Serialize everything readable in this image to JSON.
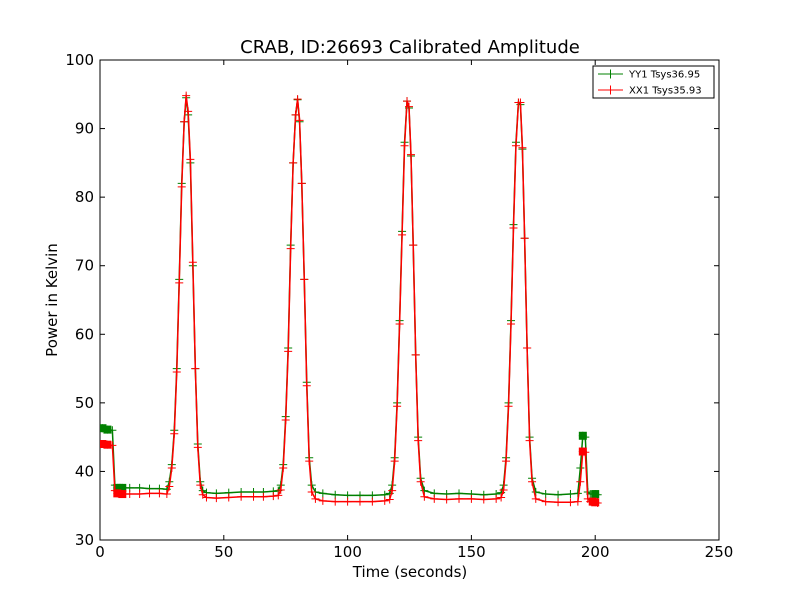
{
  "chart_data": {
    "type": "line",
    "title": "CRAB, ID:26693 Calibrated Amplitude",
    "xlabel": "Time (seconds)",
    "ylabel": "Power in Kelvin",
    "xlim": [
      0,
      250
    ],
    "ylim": [
      30,
      100
    ],
    "xticks": [
      0,
      50,
      100,
      150,
      200,
      250
    ],
    "yticks": [
      30,
      40,
      50,
      60,
      70,
      80,
      90,
      100
    ],
    "grid": false,
    "legend_position": "top-right",
    "series": [
      {
        "name": "YY1 Tsys36.95",
        "color": "#008000",
        "marker": "+",
        "square_marker_points": [
          [
            1,
            46.3
          ],
          [
            3,
            46.1
          ],
          [
            7,
            37.6
          ],
          [
            9,
            37.6
          ],
          [
            195,
            45.2
          ],
          [
            200,
            36.7
          ]
        ],
        "points": [
          [
            1,
            46.3
          ],
          [
            3,
            46.1
          ],
          [
            5,
            46.0
          ],
          [
            6,
            38.0
          ],
          [
            7,
            37.6
          ],
          [
            9,
            37.6
          ],
          [
            12,
            37.6
          ],
          [
            16,
            37.6
          ],
          [
            20,
            37.5
          ],
          [
            24,
            37.5
          ],
          [
            27,
            37.4
          ],
          [
            28,
            38.5
          ],
          [
            29,
            41
          ],
          [
            30,
            46
          ],
          [
            31,
            55
          ],
          [
            32,
            68
          ],
          [
            33,
            82
          ],
          [
            34,
            91
          ],
          [
            34.8,
            94.5
          ],
          [
            35.6,
            92
          ],
          [
            36.5,
            85
          ],
          [
            37.5,
            70
          ],
          [
            38.5,
            55
          ],
          [
            39.5,
            44
          ],
          [
            40.5,
            38.5
          ],
          [
            41.5,
            37.2
          ],
          [
            43,
            36.9
          ],
          [
            47,
            36.8
          ],
          [
            52,
            36.9
          ],
          [
            57,
            37.0
          ],
          [
            62,
            37.0
          ],
          [
            66,
            37.0
          ],
          [
            70,
            37.1
          ],
          [
            72,
            37.2
          ],
          [
            73,
            38
          ],
          [
            74,
            41
          ],
          [
            75,
            48
          ],
          [
            76,
            58
          ],
          [
            77,
            73
          ],
          [
            78,
            85
          ],
          [
            79,
            92
          ],
          [
            79.8,
            94.2
          ],
          [
            80.6,
            91
          ],
          [
            81.5,
            82
          ],
          [
            82.5,
            68
          ],
          [
            83.5,
            53
          ],
          [
            84.5,
            42
          ],
          [
            85.5,
            38
          ],
          [
            87,
            37
          ],
          [
            90,
            36.8
          ],
          [
            95,
            36.6
          ],
          [
            100,
            36.5
          ],
          [
            105,
            36.5
          ],
          [
            110,
            36.5
          ],
          [
            115,
            36.6
          ],
          [
            117,
            36.8
          ],
          [
            118,
            38
          ],
          [
            119,
            42
          ],
          [
            120,
            50
          ],
          [
            121,
            62
          ],
          [
            122,
            75
          ],
          [
            123,
            88
          ],
          [
            124,
            94
          ],
          [
            124.8,
            93
          ],
          [
            125.6,
            86
          ],
          [
            126.5,
            73
          ],
          [
            127.5,
            57
          ],
          [
            128.5,
            45
          ],
          [
            129.5,
            39
          ],
          [
            131,
            37.2
          ],
          [
            135,
            36.8
          ],
          [
            140,
            36.7
          ],
          [
            145,
            36.8
          ],
          [
            150,
            36.7
          ],
          [
            155,
            36.6
          ],
          [
            160,
            36.7
          ],
          [
            162,
            36.9
          ],
          [
            163,
            38
          ],
          [
            164,
            42
          ],
          [
            165,
            50
          ],
          [
            166,
            62
          ],
          [
            167,
            76
          ],
          [
            168,
            88
          ],
          [
            169,
            93.8
          ],
          [
            169.8,
            93.5
          ],
          [
            170.6,
            87
          ],
          [
            171.5,
            74
          ],
          [
            172.5,
            58
          ],
          [
            173.5,
            45
          ],
          [
            174.5,
            39
          ],
          [
            176,
            37
          ],
          [
            180,
            36.7
          ],
          [
            185,
            36.6
          ],
          [
            190,
            36.7
          ],
          [
            193,
            36.8
          ],
          [
            194,
            40.5
          ],
          [
            195,
            45.2
          ],
          [
            196,
            45.0
          ],
          [
            197,
            37.0
          ],
          [
            198,
            36.7
          ],
          [
            200,
            36.7
          ],
          [
            201,
            36.6
          ]
        ]
      },
      {
        "name": "XX1 Tsys35.93",
        "color": "#ff0000",
        "marker": "+",
        "square_marker_points": [
          [
            1,
            44
          ],
          [
            3,
            43.9
          ],
          [
            7,
            36.8
          ],
          [
            9,
            36.7
          ],
          [
            195,
            42.9
          ],
          [
            199,
            35.6
          ],
          [
            200,
            35.5
          ]
        ],
        "points": [
          [
            1,
            44.0
          ],
          [
            3,
            43.9
          ],
          [
            5,
            43.8
          ],
          [
            6,
            37.2
          ],
          [
            7,
            36.8
          ],
          [
            9,
            36.7
          ],
          [
            12,
            36.7
          ],
          [
            16,
            36.7
          ],
          [
            20,
            36.8
          ],
          [
            24,
            36.8
          ],
          [
            27,
            36.7
          ],
          [
            28,
            37.8
          ],
          [
            29,
            40.5
          ],
          [
            30,
            45.5
          ],
          [
            31,
            54.5
          ],
          [
            32,
            67.5
          ],
          [
            33,
            81.5
          ],
          [
            34,
            91
          ],
          [
            34.8,
            94.8
          ],
          [
            35.6,
            92.5
          ],
          [
            36.5,
            85.5
          ],
          [
            37.5,
            70.5
          ],
          [
            38.5,
            55
          ],
          [
            39.5,
            43.5
          ],
          [
            40.5,
            38
          ],
          [
            41.5,
            36.6
          ],
          [
            43,
            36.2
          ],
          [
            47,
            36.1
          ],
          [
            52,
            36.2
          ],
          [
            57,
            36.3
          ],
          [
            62,
            36.3
          ],
          [
            66,
            36.3
          ],
          [
            70,
            36.4
          ],
          [
            72,
            36.5
          ],
          [
            73,
            37.3
          ],
          [
            74,
            40.5
          ],
          [
            75,
            47.5
          ],
          [
            76,
            57.5
          ],
          [
            77,
            72.5
          ],
          [
            78,
            85
          ],
          [
            79,
            92
          ],
          [
            79.8,
            94.3
          ],
          [
            80.6,
            91.2
          ],
          [
            81.5,
            82
          ],
          [
            82.5,
            68
          ],
          [
            83.5,
            52.5
          ],
          [
            84.5,
            41.5
          ],
          [
            85.5,
            37
          ],
          [
            87,
            36
          ],
          [
            90,
            35.7
          ],
          [
            95,
            35.6
          ],
          [
            100,
            35.6
          ],
          [
            105,
            35.6
          ],
          [
            110,
            35.6
          ],
          [
            115,
            35.7
          ],
          [
            117,
            35.9
          ],
          [
            118,
            37.2
          ],
          [
            119,
            41.5
          ],
          [
            120,
            49.5
          ],
          [
            121,
            61.5
          ],
          [
            122,
            74.5
          ],
          [
            123,
            87.5
          ],
          [
            124,
            94
          ],
          [
            124.8,
            93.2
          ],
          [
            125.6,
            86.2
          ],
          [
            126.5,
            73
          ],
          [
            127.5,
            57
          ],
          [
            128.5,
            44.5
          ],
          [
            129.5,
            38.5
          ],
          [
            131,
            36.3
          ],
          [
            135,
            36.0
          ],
          [
            140,
            35.9
          ],
          [
            145,
            36.0
          ],
          [
            150,
            36.0
          ],
          [
            155,
            35.9
          ],
          [
            160,
            36.0
          ],
          [
            162,
            36.2
          ],
          [
            163,
            37.3
          ],
          [
            164,
            41.5
          ],
          [
            165,
            49.5
          ],
          [
            166,
            61.5
          ],
          [
            167,
            75.5
          ],
          [
            168,
            87.5
          ],
          [
            169,
            93.8
          ],
          [
            169.8,
            93.8
          ],
          [
            170.6,
            87.2
          ],
          [
            171.5,
            74
          ],
          [
            172.5,
            58
          ],
          [
            173.5,
            44.5
          ],
          [
            174.5,
            38.5
          ],
          [
            176,
            36
          ],
          [
            180,
            35.6
          ],
          [
            185,
            35.5
          ],
          [
            190,
            35.5
          ],
          [
            193,
            35.6
          ],
          [
            194,
            38.5
          ],
          [
            195,
            42.9
          ],
          [
            196,
            42.8
          ],
          [
            197,
            36.0
          ],
          [
            198,
            35.6
          ],
          [
            200,
            35.5
          ],
          [
            201,
            35.4
          ]
        ]
      }
    ]
  }
}
